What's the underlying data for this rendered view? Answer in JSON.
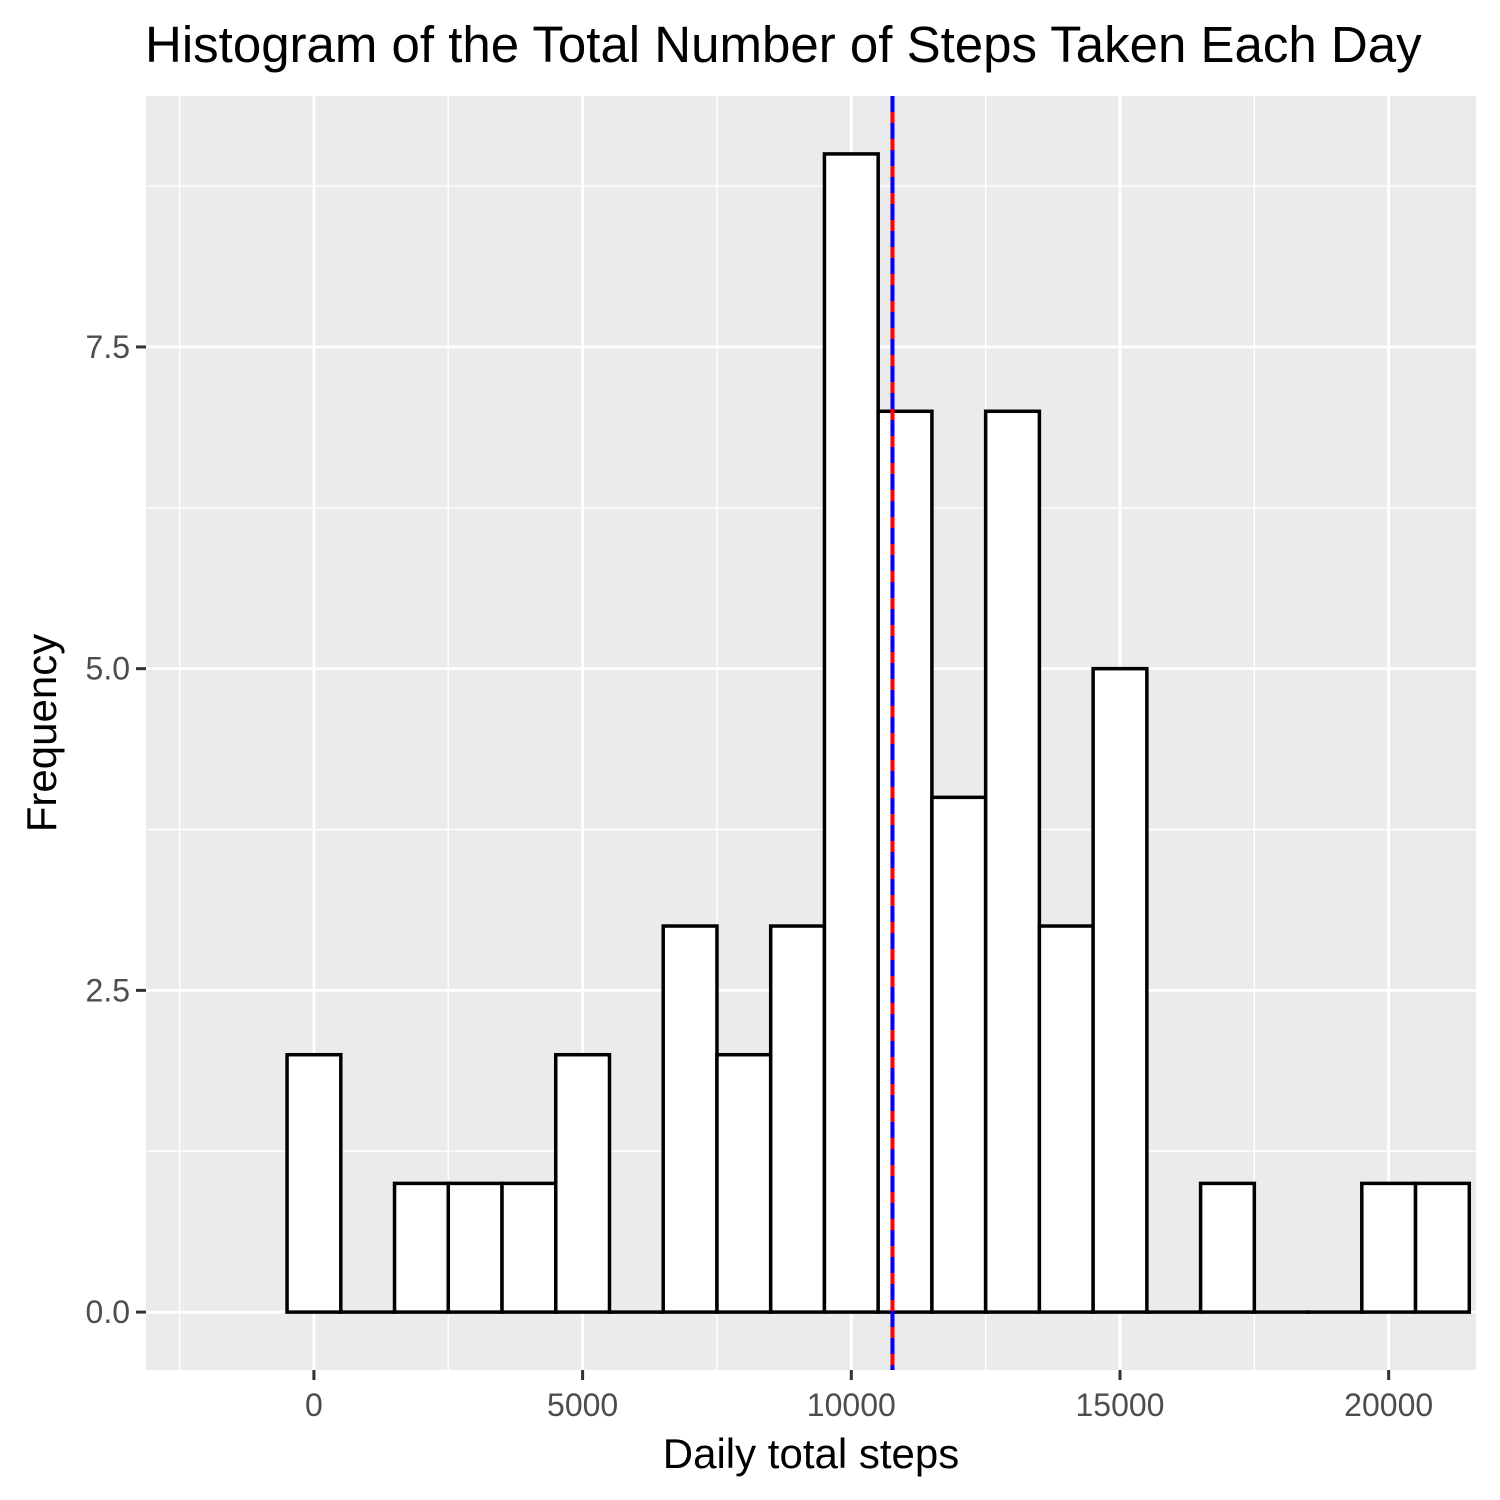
{
  "chart_data": {
    "type": "bar",
    "title": "Histogram of the Total Number of Steps Taken Each Day",
    "xlabel": "Daily total steps",
    "ylabel": "Frequency",
    "bin_width": 1000,
    "x": [
      0,
      1000,
      2000,
      3000,
      4000,
      5000,
      6000,
      7000,
      8000,
      9000,
      10000,
      11000,
      12000,
      13000,
      14000,
      15000,
      16000,
      17000,
      18000,
      19000,
      20000,
      21000
    ],
    "values": [
      2,
      0,
      1,
      1,
      1,
      2,
      0,
      3,
      2,
      3,
      9,
      7,
      4,
      7,
      3,
      5,
      0,
      1,
      0,
      0,
      1,
      1
    ],
    "xlim": [
      -3125,
      21625
    ],
    "ylim": [
      -0.45,
      9.45
    ],
    "x_ticks": [
      0,
      5000,
      10000,
      15000,
      20000
    ],
    "x_tick_labels": [
      "0",
      "5000",
      "10000",
      "15000",
      "20000"
    ],
    "y_ticks": [
      0,
      2.5,
      5,
      7.5
    ],
    "y_tick_labels": [
      "0.0",
      "2.5",
      "5.0",
      "7.5"
    ],
    "reference_lines": [
      {
        "x": 10766,
        "color": "#ff0000",
        "style": "solid"
      },
      {
        "x": 10766,
        "color": "#0000ff",
        "style": "dashed"
      }
    ],
    "grid": true,
    "colors": {
      "panel": "#ebebeb",
      "grid": "#ffffff",
      "bar_fill": "#ffffff",
      "bar_stroke": "#000000",
      "tick_text": "#4d4d4d"
    }
  }
}
